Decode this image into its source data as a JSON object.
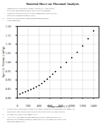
{
  "chart_data": {
    "type": "scatter",
    "title": "Tutorial Sheet on Thermal Analysis",
    "annotations": [
      {
        "text": [
          "components of a Differential Thermal Analysis (DTA) and explain",
          "the lines/the measurements and/or convert into a thermogram."
        ]
      },
      {
        "label": "1.",
        "text": [
          "Explain the difference between a \"power compensated\" and \"heat flux\"",
          "differential scanning calorimetry (DSC)"
        ]
      },
      {
        "label": "2.",
        "text": [
          "Retrieve the data obtained from calibrations measurements",
          "versus temperature."
        ]
      },
      {
        "label": "c.",
        "text": [
          "Describe how a representative shown in the figure explains what is happening to the sample. (In",
          "particular the large increase and a decrease then a curve before the large increase)."
        ]
      },
      {
        "label": "d.",
        "text": [
          "Determine the density of the sample at 0 °C."
        ]
      },
      {
        "label": "e.",
        "text": [
          "After 100 °C, the sample becomes amorphous (a state in materials where the",
          "molecules are randomly arranged at a molecular level). Determine the density of the",
          "amorphous sample at 0°C."
        ]
      }
    ],
    "x": [
      50,
      100,
      150,
      200,
      250,
      300,
      350,
      400,
      450,
      500,
      550,
      600,
      650,
      700,
      800,
      900,
      1000,
      1100,
      1200,
      1300,
      1400
    ],
    "values": [
      0.822,
      0.828,
      0.834,
      0.84,
      0.847,
      0.854,
      0.862,
      0.87,
      0.88,
      0.892,
      0.905,
      0.918,
      0.932,
      0.947,
      0.972,
      0.998,
      1.025,
      1.055,
      1.09,
      1.13,
      1.175
    ],
    "color": "black",
    "xlabel": "Temperature (°C)",
    "ylabel": "Specific Volume (cm³/g)",
    "xlim": [
      0,
      1500
    ],
    "ylim": [
      0.8,
      1.2
    ],
    "xticks": [
      0,
      200,
      400,
      600,
      800,
      1000,
      1200,
      1400
    ],
    "yticks": [
      {
        "value": 0.8,
        "label": "0.80"
      },
      0.85,
      {
        "value": 0.9,
        "label": "0.90"
      },
      0.95,
      {
        "value": 1.0,
        "label": "1.00"
      },
      1.05,
      {
        "value": 1.1,
        "label": "1.10"
      },
      1.15,
      {
        "value": 1.2,
        "label": "1.20"
      }
    ],
    "grid": true
  }
}
